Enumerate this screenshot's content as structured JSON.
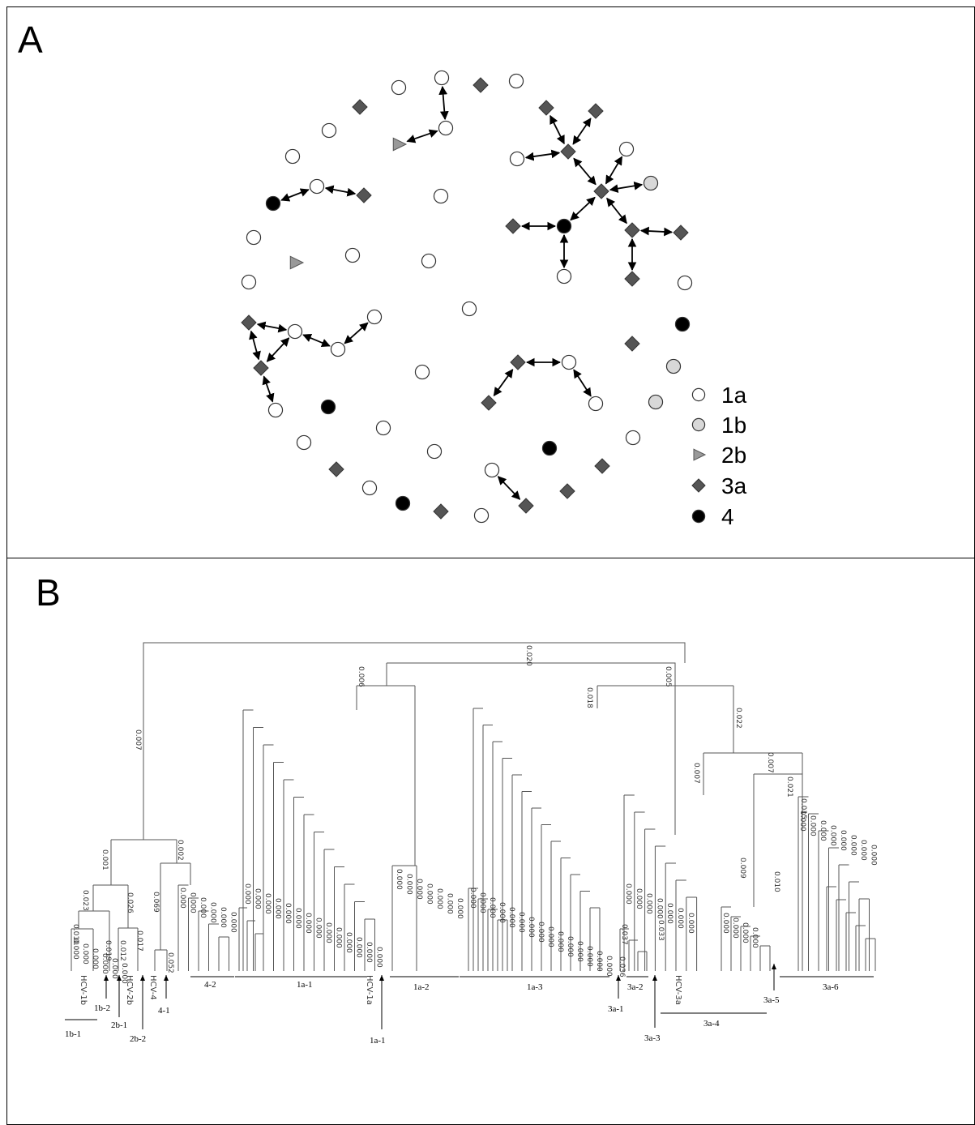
{
  "panel_a": {
    "label": "A",
    "legend": [
      {
        "label": "1a",
        "shape": "circle",
        "fill": "#ffffff"
      },
      {
        "label": "1b",
        "shape": "circle",
        "fill": "#d8d8d8"
      },
      {
        "label": "2b",
        "shape": "triangle",
        "fill": "#999999"
      },
      {
        "label": "3a",
        "shape": "diamond",
        "fill": "#555555"
      },
      {
        "label": "4",
        "shape": "circle",
        "fill": "#000000"
      }
    ],
    "colors": {
      "1a": "#ffffff",
      "1b": "#d8d8d8",
      "2b": "#999999",
      "3a": "#555555",
      "4": "#000000"
    }
  },
  "panel_b": {
    "label": "B",
    "reference_labels": [
      "HCV-1b",
      "HCV-2b",
      "HCV-4",
      "HCV-1a",
      "HCV-3a"
    ],
    "top_branch_labels": [
      "0.020",
      "0.007",
      "0.006",
      "0.005",
      "0.018",
      "0.022",
      "0.007",
      "0.007"
    ],
    "lower_branch_labels": [
      "0.001",
      "0.002",
      "0.023",
      "0.026",
      "0.069",
      "0.010",
      "0.019",
      "0.012",
      "0.017",
      "0.052",
      "0.009",
      "0.010",
      "0.033",
      "0.037",
      "0.036",
      "0.021",
      "0.015"
    ],
    "clade_labels": [
      "4-2",
      "1a-1",
      "1a-2",
      "1a-3",
      "3a-2",
      "3a-6",
      "1b-1",
      "1b-2",
      "2b-1",
      "2b-2",
      "4-1",
      "1a-1",
      "3a-1",
      "3a-3",
      "3a-4",
      "3a-5"
    ]
  }
}
